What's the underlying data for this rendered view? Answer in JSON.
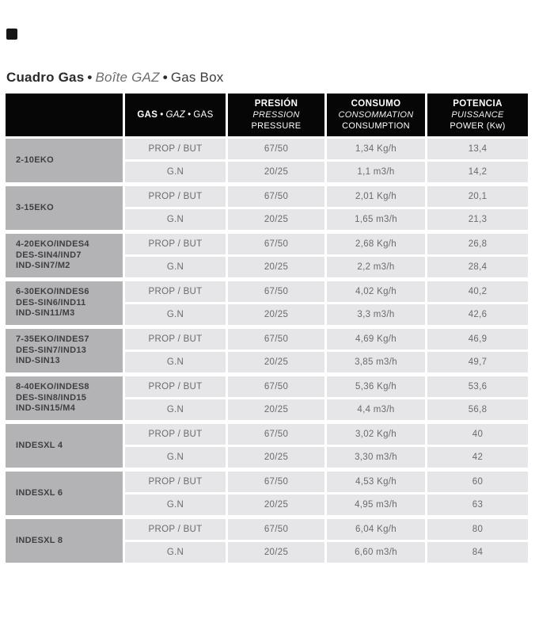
{
  "colors": {
    "header_bg": "#060606",
    "model_cell_bg": "#b3b3b5",
    "data_cell_bg": "#e6e6e8",
    "marker": "#161616"
  },
  "title": {
    "es": "Cuadro Gas",
    "fr": "Boîte GAZ",
    "en": "Gas Box",
    "bullet": "•"
  },
  "table": {
    "header": {
      "bullet": "•",
      "gas": {
        "es": "GAS",
        "fr": "GAZ",
        "en": "GAS"
      },
      "pressure": {
        "es": "PRESIÓN",
        "fr": "PRESSION",
        "en": "PRESSURE"
      },
      "consumption": {
        "es": "CONSUMO",
        "fr": "CONSOMMATION",
        "en": "CONSUMPTION"
      },
      "power": {
        "es": "POTENCIA",
        "fr": "PUISSANCE",
        "en": "POWER (Kw)"
      }
    },
    "groups": [
      {
        "model_lines": [
          "2-10EKO"
        ],
        "rows": [
          [
            "PROP / BUT",
            "67/50",
            "1,34 Kg/h",
            "13,4"
          ],
          [
            "G.N",
            "20/25",
            "1,1 m3/h",
            "14,2"
          ]
        ]
      },
      {
        "model_lines": [
          "3-15EKO"
        ],
        "rows": [
          [
            "PROP / BUT",
            "67/50",
            "2,01 Kg/h",
            "20,1"
          ],
          [
            "G.N",
            "20/25",
            "1,65 m3/h",
            "21,3"
          ]
        ]
      },
      {
        "model_lines": [
          "4-20EKO/INDES4",
          "DES-SIN4/IND7",
          "IND-SIN7/M2"
        ],
        "rows": [
          [
            "PROP / BUT",
            "67/50",
            "2,68 Kg/h",
            "26,8"
          ],
          [
            "G.N",
            "20/25",
            "2,2 m3/h",
            "28,4"
          ]
        ]
      },
      {
        "model_lines": [
          "6-30EKO/INDES6",
          "DES-SIN6/IND11",
          "IND-SIN11/M3"
        ],
        "rows": [
          [
            "PROP / BUT",
            "67/50",
            "4,02 Kg/h",
            "40,2"
          ],
          [
            "G.N",
            "20/25",
            "3,3 m3/h",
            "42,6"
          ]
        ]
      },
      {
        "model_lines": [
          "7-35EKO/INDES7",
          "DES-SIN7/IND13",
          "IND-SIN13"
        ],
        "rows": [
          [
            "PROP / BUT",
            "67/50",
            "4,69 Kg/h",
            "46,9"
          ],
          [
            "G.N",
            "20/25",
            "3,85 m3/h",
            "49,7"
          ]
        ]
      },
      {
        "model_lines": [
          "8-40EKO/INDES8",
          "DES-SIN8/IND15",
          "IND-SIN15/M4"
        ],
        "rows": [
          [
            "PROP / BUT",
            "67/50",
            "5,36 Kg/h",
            "53,6"
          ],
          [
            "G.N",
            "20/25",
            "4,4 m3/h",
            "56,8"
          ]
        ]
      },
      {
        "model_lines": [
          "INDESXL 4"
        ],
        "rows": [
          [
            "PROP / BUT",
            "67/50",
            "3,02 Kg/h",
            "40"
          ],
          [
            "G.N",
            "20/25",
            "3,30 m3/h",
            "42"
          ]
        ]
      },
      {
        "model_lines": [
          "INDESXL 6"
        ],
        "rows": [
          [
            "PROP / BUT",
            "67/50",
            "4,53 Kg/h",
            "60"
          ],
          [
            "G.N",
            "20/25",
            "4,95 m3/h",
            "63"
          ]
        ]
      },
      {
        "model_lines": [
          "INDESXL 8"
        ],
        "rows": [
          [
            "PROP / BUT",
            "67/50",
            "6,04 Kg/h",
            "80"
          ],
          [
            "G.N",
            "20/25",
            "6,60 m3/h",
            "84"
          ]
        ]
      }
    ]
  }
}
